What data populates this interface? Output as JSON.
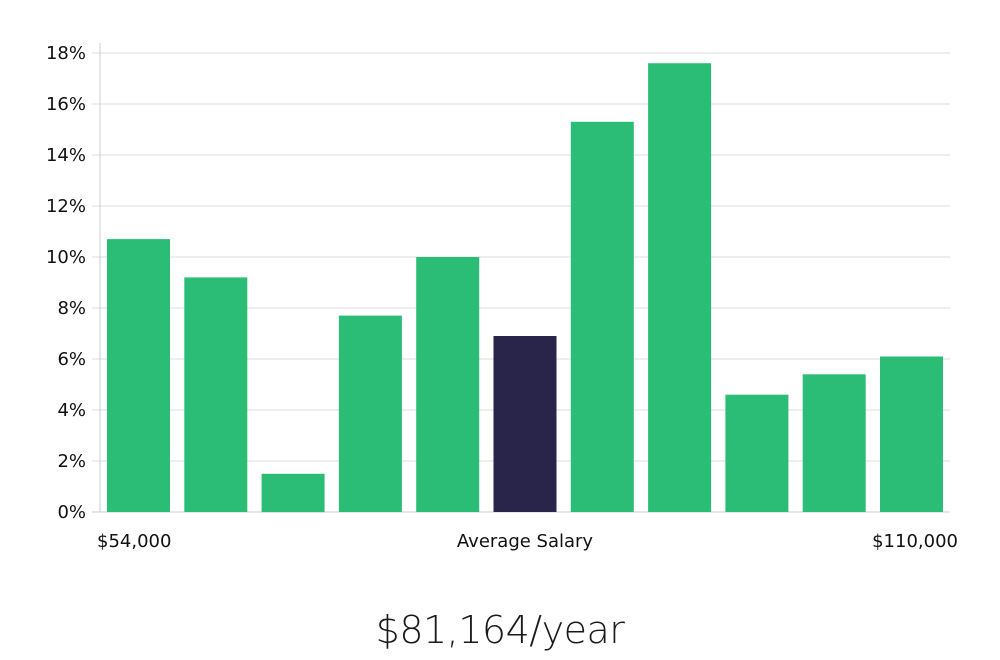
{
  "chart_data": {
    "type": "bar",
    "values": [
      10.7,
      9.2,
      1.5,
      7.7,
      10.0,
      6.9,
      15.3,
      17.6,
      4.6,
      5.4,
      6.1
    ],
    "highlight_index": 5,
    "ylim": [
      0,
      18
    ],
    "yticks": [
      "0%",
      "2%",
      "4%",
      "6%",
      "8%",
      "10%",
      "12%",
      "14%",
      "16%",
      "18%"
    ],
    "x_labels": {
      "left": "$54,000",
      "center": "Average Salary",
      "right": "$110,000"
    },
    "grid": true,
    "colors": {
      "bar": "#2bbd76",
      "highlight": "#28244a",
      "grid": "#dddddd",
      "axis": "#cccccc"
    }
  },
  "salary_text": "$81,164/year"
}
